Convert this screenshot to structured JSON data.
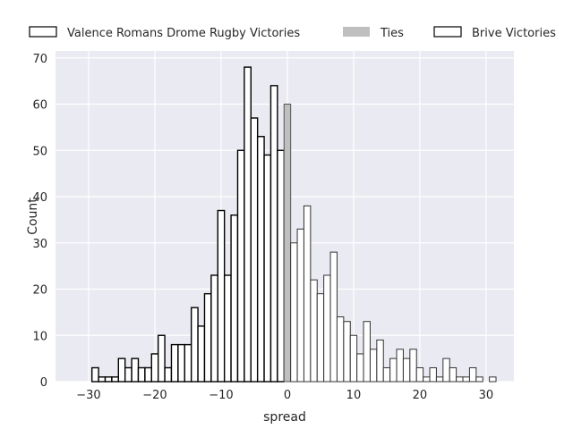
{
  "chart_data": {
    "type": "bar",
    "xlabel": "spread",
    "ylabel": "Count",
    "xlim": [
      -35,
      34.2
    ],
    "ylim": [
      0,
      71.5
    ],
    "xticks": [
      -30,
      -20,
      -10,
      0,
      10,
      20,
      30
    ],
    "yticks": [
      0,
      10,
      20,
      30,
      40,
      50,
      60,
      70
    ],
    "grid": true,
    "legend_position": "top",
    "series": [
      {
        "name": "Valence Romans Drome Rugby Victories",
        "color": "#ffffff",
        "edge": "#000000",
        "x": [
          -29,
          -28,
          -27,
          -26,
          -25,
          -24,
          -23,
          -22,
          -21,
          -20,
          -19,
          -18,
          -17,
          -16,
          -15,
          -14,
          -13,
          -12,
          -11,
          -10,
          -9,
          -8,
          -7,
          -6,
          -5,
          -4,
          -3,
          -2,
          -1
        ],
        "values": [
          3,
          1,
          1,
          1,
          5,
          3,
          5,
          3,
          3,
          6,
          10,
          3,
          8,
          8,
          8,
          16,
          12,
          19,
          23,
          37,
          23,
          36,
          50,
          68,
          57,
          53,
          49,
          64,
          50
        ]
      },
      {
        "name": "Ties",
        "color": "#bfbfbf",
        "edge": "#555555",
        "x": [
          0
        ],
        "values": [
          60
        ]
      },
      {
        "name": "Brive Victories",
        "color": "#ffffff",
        "edge": "#333333",
        "x": [
          1,
          2,
          3,
          4,
          5,
          6,
          7,
          8,
          9,
          10,
          11,
          12,
          13,
          14,
          15,
          16,
          17,
          18,
          19,
          20,
          21,
          22,
          23,
          24,
          25,
          26,
          27,
          28,
          29,
          30,
          31
        ],
        "values": [
          30,
          33,
          38,
          22,
          19,
          23,
          28,
          14,
          13,
          10,
          6,
          13,
          7,
          9,
          3,
          5,
          7,
          5,
          7,
          3,
          1,
          3,
          1,
          5,
          3,
          1,
          1,
          3,
          1,
          0,
          1
        ]
      }
    ]
  }
}
